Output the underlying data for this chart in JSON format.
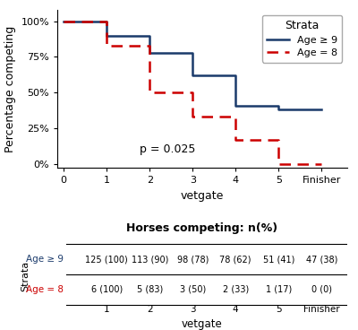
{
  "age9_x": [
    0,
    1,
    1,
    2,
    2,
    3,
    3,
    4,
    4,
    5,
    5,
    6
  ],
  "age9_y": [
    100,
    100,
    90,
    90,
    78,
    78,
    62,
    62,
    41,
    41,
    38,
    38
  ],
  "age8_x": [
    0,
    1,
    1,
    2,
    2,
    3,
    3,
    4,
    4,
    5,
    5,
    6
  ],
  "age8_y": [
    100,
    100,
    83,
    83,
    50,
    50,
    33,
    33,
    17,
    17,
    0,
    0
  ],
  "age9_color": "#1a3a6b",
  "age8_color": "#cc0000",
  "yticks": [
    0,
    25,
    50,
    75,
    100
  ],
  "ytick_labels": [
    "0%",
    "25%",
    "50%",
    "75%",
    "100%"
  ],
  "xticks": [
    0,
    1,
    2,
    3,
    4,
    5,
    6
  ],
  "xtick_labels": [
    "0",
    "1",
    "2",
    "3",
    "4",
    "5",
    "Finisher"
  ],
  "xlabel": "vetgate",
  "ylabel": "Percentage competing",
  "pvalue": "p = 0.025",
  "pvalue_x": 0.38,
  "pvalue_y": 0.12,
  "legend_title": "Strata",
  "legend_age9": "Age ≥ 9",
  "legend_age8": "Age = 8",
  "table_title": "Horses competing: n(%)",
  "table_rows": [
    "Age ≥ 9",
    "Age = 8"
  ],
  "table_row_colors": [
    "#1a3a6b",
    "#cc0000"
  ],
  "table_cols": [
    "1",
    "2",
    "3",
    "4",
    "5",
    "Finisher"
  ],
  "table_data_age9": [
    "125 (100)",
    "113 (90)",
    "98 (78)",
    "78 (62)",
    "51 (41)",
    "47 (38)"
  ],
  "table_data_age8": [
    "6 (100)",
    "5 (83)",
    "3 (50)",
    "2 (33)",
    "1 (17)",
    "0 (0)"
  ],
  "table_xlabel": "vetgate",
  "strata_label": "Strata",
  "bg_color": "#ffffff",
  "xlim": [
    -0.15,
    6.6
  ],
  "ylim": [
    -3,
    108
  ]
}
